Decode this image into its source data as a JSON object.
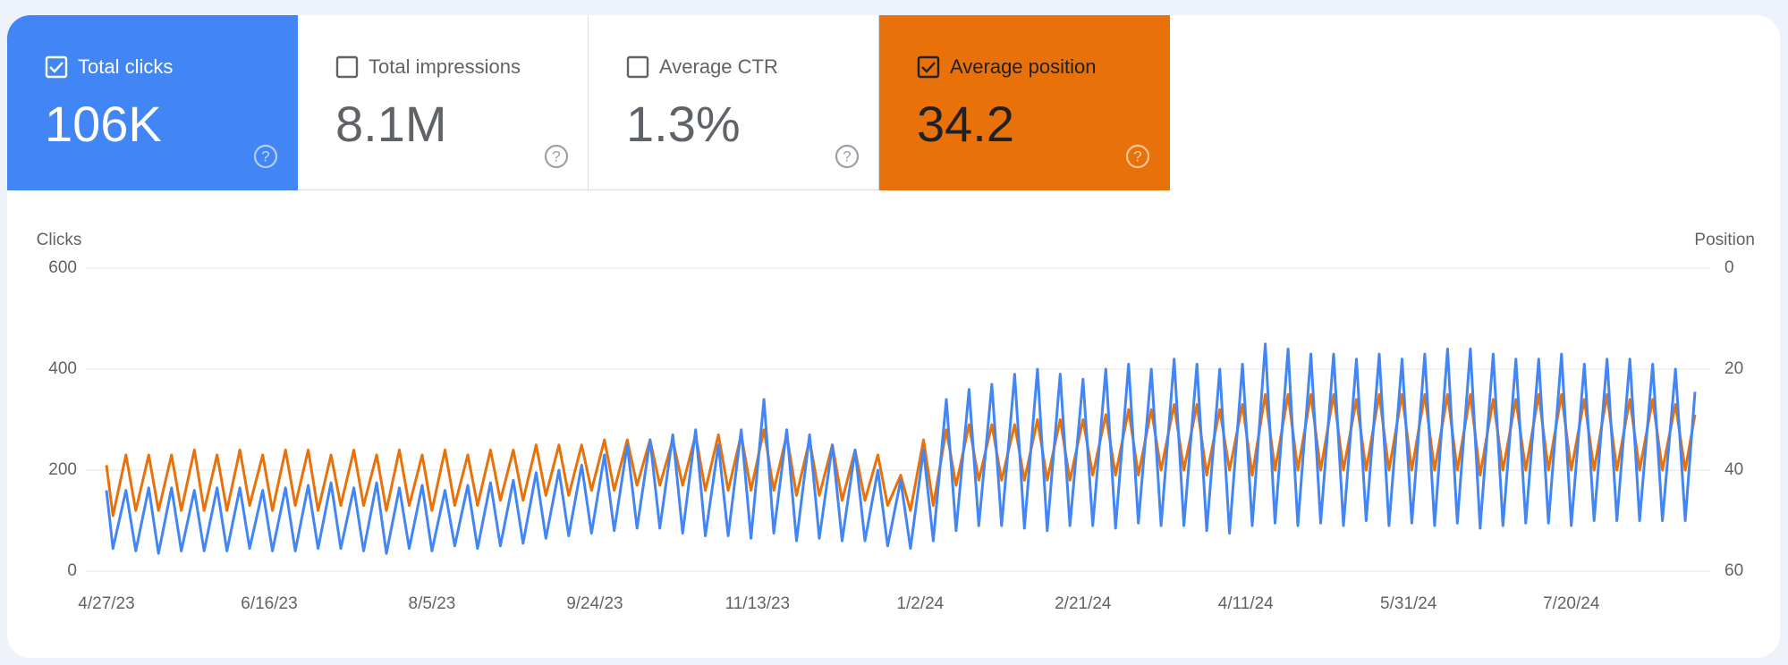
{
  "metrics": [
    {
      "label": "Total clicks",
      "value": "106K",
      "checked": true
    },
    {
      "label": "Total impressions",
      "value": "8.1M",
      "checked": false
    },
    {
      "label": "Average CTR",
      "value": "1.3%",
      "checked": false
    },
    {
      "label": "Average position",
      "value": "34.2",
      "checked": true
    }
  ],
  "chart_data": {
    "type": "line",
    "x": [
      "2023-04-27",
      "2023-04-29",
      "2023-05-03",
      "2023-05-06",
      "2023-05-10",
      "2023-05-13",
      "2023-05-17",
      "2023-05-20",
      "2023-05-24",
      "2023-05-27",
      "2023-05-31",
      "2023-06-03",
      "2023-06-07",
      "2023-06-10",
      "2023-06-14",
      "2023-06-17",
      "2023-06-21",
      "2023-06-24",
      "2023-06-28",
      "2023-07-01",
      "2023-07-05",
      "2023-07-08",
      "2023-07-12",
      "2023-07-15",
      "2023-07-19",
      "2023-07-22",
      "2023-07-26",
      "2023-07-29",
      "2023-08-02",
      "2023-08-05",
      "2023-08-09",
      "2023-08-12",
      "2023-08-16",
      "2023-08-19",
      "2023-08-23",
      "2023-08-26",
      "2023-08-30",
      "2023-09-02",
      "2023-09-06",
      "2023-09-09",
      "2023-09-13",
      "2023-09-16",
      "2023-09-20",
      "2023-09-23",
      "2023-09-27",
      "2023-09-30",
      "2023-10-04",
      "2023-10-07",
      "2023-10-11",
      "2023-10-14",
      "2023-10-18",
      "2023-10-21",
      "2023-10-25",
      "2023-10-28",
      "2023-11-01",
      "2023-11-04",
      "2023-11-08",
      "2023-11-11",
      "2023-11-15",
      "2023-11-18",
      "2023-11-22",
      "2023-11-25",
      "2023-11-29",
      "2023-12-02",
      "2023-12-06",
      "2023-12-09",
      "2023-12-13",
      "2023-12-16",
      "2023-12-20",
      "2023-12-23",
      "2023-12-27",
      "2023-12-30",
      "2024-01-03",
      "2024-01-06",
      "2024-01-10",
      "2024-01-13",
      "2024-01-17",
      "2024-01-20",
      "2024-01-24",
      "2024-01-27",
      "2024-01-31",
      "2024-02-03",
      "2024-02-07",
      "2024-02-10",
      "2024-02-14",
      "2024-02-17",
      "2024-02-21",
      "2024-02-24",
      "2024-02-28",
      "2024-03-02",
      "2024-03-06",
      "2024-03-09",
      "2024-03-13",
      "2024-03-16",
      "2024-03-20",
      "2024-03-23",
      "2024-03-27",
      "2024-03-30",
      "2024-04-03",
      "2024-04-06",
      "2024-04-10",
      "2024-04-13",
      "2024-04-17",
      "2024-04-20",
      "2024-04-24",
      "2024-04-27",
      "2024-05-01",
      "2024-05-04",
      "2024-05-08",
      "2024-05-11",
      "2024-05-15",
      "2024-05-18",
      "2024-05-22",
      "2024-05-25",
      "2024-05-29",
      "2024-06-01",
      "2024-06-05",
      "2024-06-08",
      "2024-06-12",
      "2024-06-15",
      "2024-06-19",
      "2024-06-22",
      "2024-06-26",
      "2024-06-29",
      "2024-07-03",
      "2024-07-06",
      "2024-07-10",
      "2024-07-13",
      "2024-07-17",
      "2024-07-20",
      "2024-07-24",
      "2024-07-27",
      "2024-07-31",
      "2024-08-03",
      "2024-08-07",
      "2024-08-10",
      "2024-08-14",
      "2024-08-17",
      "2024-08-21",
      "2024-08-24",
      "2024-08-27"
    ],
    "series": [
      {
        "name": "Clicks",
        "color": "#4285f4",
        "values": [
          160,
          45,
          160,
          40,
          165,
          35,
          165,
          40,
          160,
          40,
          165,
          40,
          165,
          45,
          160,
          40,
          165,
          40,
          170,
          45,
          175,
          45,
          165,
          40,
          175,
          35,
          165,
          45,
          170,
          40,
          160,
          50,
          170,
          45,
          175,
          50,
          180,
          55,
          195,
          65,
          200,
          70,
          210,
          75,
          230,
          80,
          250,
          85,
          260,
          85,
          270,
          75,
          280,
          70,
          250,
          70,
          280,
          65,
          340,
          75,
          280,
          60,
          270,
          65,
          250,
          60,
          240,
          60,
          200,
          50,
          180,
          45,
          240,
          60,
          340,
          80,
          360,
          90,
          370,
          90,
          390,
          85,
          400,
          80,
          390,
          90,
          380,
          90,
          400,
          85,
          410,
          95,
          400,
          90,
          420,
          90,
          410,
          80,
          400,
          75,
          410,
          90,
          450,
          95,
          440,
          90,
          430,
          95,
          430,
          90,
          420,
          100,
          430,
          90,
          420,
          95,
          430,
          90,
          440,
          95,
          440,
          85,
          430,
          90,
          420,
          95,
          420,
          95,
          430,
          90,
          410,
          100,
          420,
          100,
          420,
          100,
          410,
          100,
          400,
          100,
          355
        ]
      },
      {
        "name": "Position",
        "color": "#e8710a",
        "axis": "y2",
        "values": [
          39,
          49,
          37,
          48,
          37,
          48,
          37,
          48,
          36,
          48,
          37,
          48,
          36,
          47,
          37,
          48,
          36,
          47,
          36,
          48,
          37,
          47,
          36,
          47,
          37,
          48,
          36,
          47,
          37,
          48,
          36,
          47,
          37,
          47,
          36,
          46,
          36,
          46,
          35,
          45,
          35,
          45,
          35,
          44,
          34,
          44,
          34,
          43,
          34,
          43,
          34,
          43,
          33,
          44,
          33,
          44,
          33,
          44,
          32,
          44,
          33,
          45,
          34,
          45,
          35,
          46,
          36,
          46,
          37,
          47,
          41,
          48,
          34,
          47,
          32,
          43,
          31,
          42,
          31,
          42,
          31,
          42,
          30,
          42,
          30,
          42,
          30,
          41,
          29,
          41,
          28,
          41,
          28,
          40,
          27,
          40,
          27,
          41,
          28,
          40,
          27,
          41,
          25,
          40,
          25,
          40,
          25,
          40,
          25,
          40,
          26,
          40,
          25,
          40,
          25,
          40,
          25,
          40,
          25,
          40,
          25,
          41,
          26,
          40,
          26,
          40,
          25,
          40,
          25,
          40,
          26,
          40,
          25,
          40,
          26,
          40,
          26,
          40,
          27,
          40,
          29
        ]
      }
    ],
    "xlim": [
      "2023-04-27",
      "2024-08-27"
    ],
    "xticks": [
      {
        "value": "2023-04-27",
        "label": "4/27/23"
      },
      {
        "value": "2023-06-16",
        "label": "6/16/23"
      },
      {
        "value": "2023-08-05",
        "label": "8/5/23"
      },
      {
        "value": "2023-09-24",
        "label": "9/24/23"
      },
      {
        "value": "2023-11-13",
        "label": "11/13/23"
      },
      {
        "value": "2024-01-02",
        "label": "1/2/24"
      },
      {
        "value": "2024-02-21",
        "label": "2/21/24"
      },
      {
        "value": "2024-04-11",
        "label": "4/11/24"
      },
      {
        "value": "2024-05-31",
        "label": "5/31/24"
      },
      {
        "value": "2024-07-20",
        "label": "7/20/24"
      }
    ],
    "ylim": [
      0,
      600
    ],
    "yticks": [
      0,
      200,
      400,
      600
    ],
    "y2lim": [
      60,
      0
    ],
    "y2ticks": [
      0,
      20,
      40,
      60
    ],
    "grid": true
  }
}
